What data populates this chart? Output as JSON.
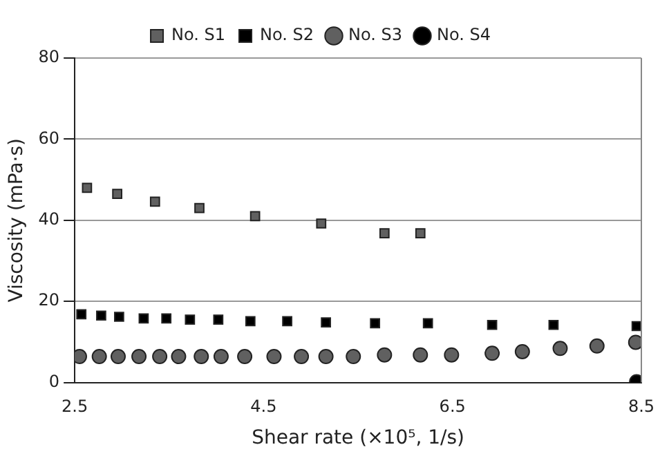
{
  "chart_data": {
    "type": "scatter",
    "xlabel": "Shear rate (×10⁵, 1/s)",
    "ylabel": "Viscosity (mPa·s)",
    "xlim": [
      2.5,
      8.5
    ],
    "xticks": [
      2.5,
      4.5,
      6.5,
      8.5
    ],
    "ylim": [
      0,
      80
    ],
    "yticks": [
      0,
      20,
      40,
      60,
      80
    ],
    "grid": "y",
    "legend": "top",
    "series": [
      {
        "name": "No. S1",
        "color": "#606060",
        "marker": "square",
        "x": [
          2.63,
          2.95,
          3.35,
          3.82,
          4.41,
          5.11,
          5.78,
          6.16
        ],
        "values": [
          48.0,
          46.5,
          44.6,
          43.0,
          41.0,
          39.2,
          36.8,
          36.8
        ]
      },
      {
        "name": "No. S2",
        "color": "#000000",
        "marker": "square",
        "x": [
          2.57,
          2.78,
          2.97,
          3.23,
          3.47,
          3.72,
          4.02,
          4.36,
          4.75,
          5.16,
          5.68,
          6.24,
          6.92,
          7.57,
          8.45
        ],
        "values": [
          16.8,
          16.5,
          16.2,
          15.8,
          15.8,
          15.5,
          15.5,
          15.1,
          15.1,
          14.8,
          14.6,
          14.6,
          14.2,
          14.2,
          13.9
        ]
      },
      {
        "name": "No. S3",
        "color": "#606060",
        "marker": "circle",
        "x": [
          2.55,
          2.76,
          2.96,
          3.18,
          3.4,
          3.6,
          3.84,
          4.05,
          4.3,
          4.61,
          4.9,
          5.16,
          5.45,
          5.78,
          6.16,
          6.49,
          6.92,
          7.24,
          7.64,
          8.03,
          8.44
        ],
        "values": [
          6.4,
          6.4,
          6.4,
          6.4,
          6.4,
          6.4,
          6.4,
          6.4,
          6.4,
          6.4,
          6.4,
          6.4,
          6.4,
          6.8,
          6.8,
          6.8,
          7.2,
          7.6,
          8.4,
          9.0,
          9.9
        ]
      },
      {
        "name": "No. S4",
        "color": "#000000",
        "marker": "circle",
        "x": [
          8.45
        ],
        "values": [
          0.2
        ]
      }
    ]
  }
}
